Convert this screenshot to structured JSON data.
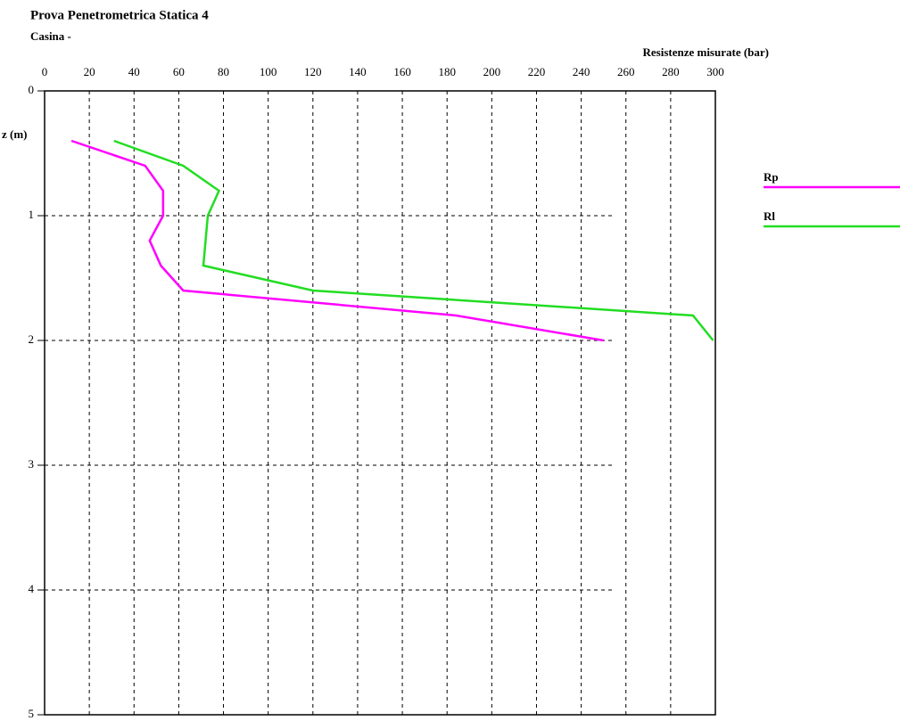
{
  "chart_data": {
    "type": "line",
    "title": "Prova Penetrometrica Statica  4",
    "subtitle": "Casina -",
    "x_label": "z (m)",
    "y_label": "Resistenze misurate (bar)",
    "x": [
      0.4,
      0.6,
      0.8,
      1.0,
      1.2,
      1.4,
      1.6,
      1.8,
      2.0
    ],
    "series": [
      {
        "name": "Rp",
        "color": "#ff00ff",
        "values": [
          12,
          45,
          53,
          53,
          47,
          52,
          62,
          184,
          250
        ]
      },
      {
        "name": "Rl",
        "color": "#22dd22",
        "values": [
          31,
          62,
          78,
          73,
          72,
          71,
          120,
          290,
          299
        ]
      }
    ],
    "xlim": [
      0,
      5
    ],
    "xticks": [
      0,
      1,
      2,
      3,
      4,
      5
    ],
    "ylim": [
      0,
      300
    ],
    "yticks": [
      0,
      20,
      40,
      60,
      80,
      100,
      120,
      140,
      160,
      180,
      200,
      220,
      240,
      260,
      280,
      300
    ],
    "grid": true,
    "legend": "right"
  }
}
